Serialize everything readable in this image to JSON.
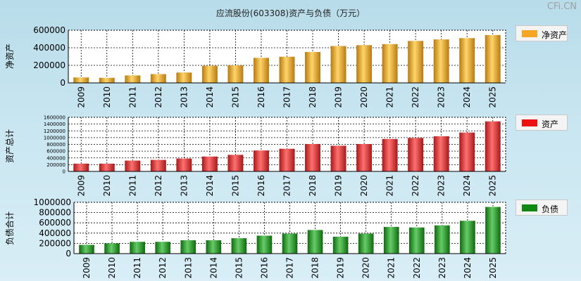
{
  "title": "应流股份(603308)资产与负债（万元）",
  "brand": "CFi.CN",
  "chart_data": [
    {
      "type": "bar",
      "ylabel": "净资产",
      "legend": "净资产",
      "color": "#f5a623",
      "categories": [
        "2009",
        "2010",
        "2011",
        "2012",
        "2013",
        "2014",
        "2015",
        "2016",
        "2017",
        "2018",
        "2019",
        "2020",
        "2021",
        "2022",
        "2023",
        "2024",
        "2025"
      ],
      "values": [
        62000,
        58000,
        85000,
        100000,
        118000,
        195000,
        200000,
        285000,
        298000,
        352000,
        420000,
        430000,
        442000,
        478000,
        495000,
        510000,
        545000
      ],
      "ylim": [
        0,
        600000
      ],
      "yticks": [
        "0",
        "200000",
        "400000",
        "600000"
      ],
      "grid": true
    },
    {
      "type": "bar",
      "ylabel": "资产总计",
      "legend": "资产",
      "color": "#ee2222",
      "categories": [
        "2009",
        "2010",
        "2011",
        "2012",
        "2013",
        "2014",
        "2015",
        "2016",
        "2017",
        "2018",
        "2019",
        "2020",
        "2021",
        "2022",
        "2023",
        "2024",
        "2025"
      ],
      "values": [
        230000,
        230000,
        320000,
        340000,
        380000,
        440000,
        490000,
        620000,
        670000,
        810000,
        760000,
        810000,
        960000,
        990000,
        1040000,
        1150000,
        1480000
      ],
      "ylim": [
        0,
        1600000
      ],
      "yticks": [
        "0",
        "200000",
        "400000",
        "600000",
        "800000",
        "1000000",
        "1200000",
        "1400000",
        "1600000"
      ],
      "grid": true
    },
    {
      "type": "bar",
      "ylabel": "负债合计",
      "legend": "负债",
      "color": "#118811",
      "categories": [
        "2009",
        "2010",
        "2011",
        "2012",
        "2013",
        "2014",
        "2015",
        "2016",
        "2017",
        "2018",
        "2019",
        "2020",
        "2021",
        "2022",
        "2023",
        "2024",
        "2025"
      ],
      "values": [
        170000,
        200000,
        230000,
        230000,
        260000,
        260000,
        300000,
        350000,
        390000,
        460000,
        330000,
        390000,
        520000,
        510000,
        550000,
        640000,
        910000
      ],
      "ylim": [
        0,
        1000000
      ],
      "yticks": [
        "0",
        "200000",
        "400000",
        "600000",
        "800000",
        "1000000"
      ],
      "grid": true
    }
  ]
}
